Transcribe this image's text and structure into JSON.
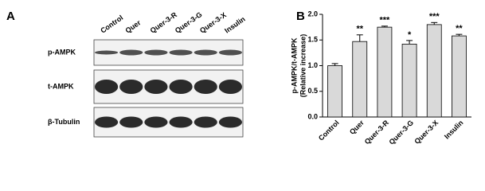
{
  "blot": {
    "label": "A",
    "lanes": [
      "Control",
      "Quer",
      "Quer-3-R",
      "Quer-3-G",
      "Quer-3-X",
      "Insulin"
    ],
    "rows": [
      "p-AMPK",
      "t-AMPK",
      "β-Tubulin"
    ]
  },
  "chart_data": {
    "type": "bar",
    "label": "B",
    "ylabel": [
      "p-AMPK/t-AMPK",
      "(Relative increase)"
    ],
    "categories": [
      "Control",
      "Quer",
      "Quer-3-R",
      "Quer-3-G",
      "Quer-3-X",
      "Insulin"
    ],
    "values": [
      1.0,
      1.47,
      1.75,
      1.42,
      1.8,
      1.58
    ],
    "errors": [
      0.04,
      0.13,
      0.02,
      0.07,
      0.04,
      0.03
    ],
    "annotations": [
      null,
      "**",
      "***",
      "*",
      "***",
      "**"
    ],
    "color": "#d9d9d9",
    "ylim": [
      0,
      2
    ],
    "yticks": [
      {
        "value": 0,
        "label": "0.0"
      },
      {
        "value": 0.5,
        "label": "0.5"
      },
      {
        "value": 1,
        "label": "1.0"
      },
      {
        "value": 1.5,
        "label": "1.5"
      },
      {
        "value": 2,
        "label": "2.0"
      }
    ]
  }
}
